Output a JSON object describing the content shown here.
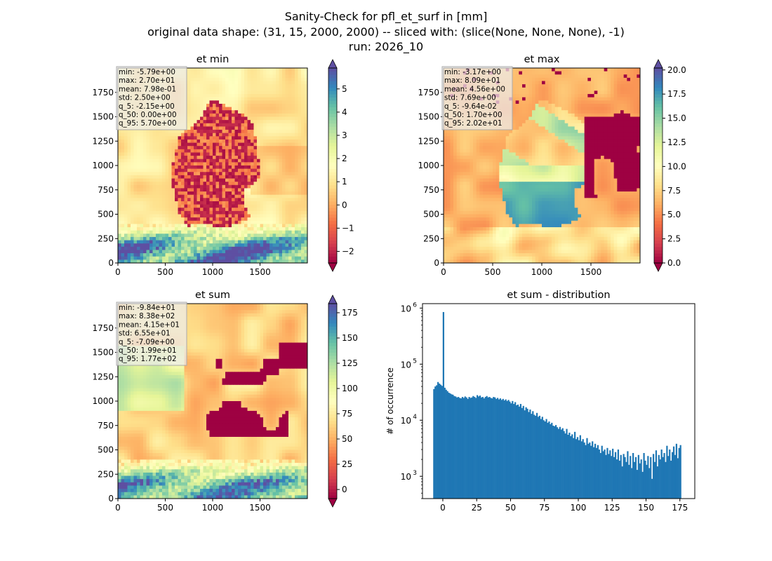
{
  "figure": {
    "title_lines": [
      "Sanity-Check for pfl_et_surf in [mm]",
      "original data shape: (31, 15, 2000, 2000) -- sliced with: (slice(None, None, None), -1)",
      "run: 2026_10"
    ]
  },
  "colormap": {
    "name": "Spectral",
    "stops": [
      "#9e0142",
      "#d53e4f",
      "#f46d43",
      "#fdae61",
      "#fee08b",
      "#ffffbf",
      "#e6f598",
      "#abdda4",
      "#66c2a5",
      "#3288bd",
      "#5e4fa2"
    ]
  },
  "chart_data": [
    {
      "type": "heatmap",
      "title": "et min",
      "xlim": [
        0,
        2000
      ],
      "ylim": [
        0,
        2000
      ],
      "xticks": [
        "0",
        "500",
        "1000",
        "1500"
      ],
      "yticks": [
        "0",
        "250",
        "500",
        "750",
        "1000",
        "1250",
        "1500",
        "1750"
      ],
      "color_range": [
        -2.5,
        5.9
      ],
      "colorbar_ticks": [
        "−2",
        "−1",
        "0",
        "1",
        "2",
        "3",
        "4",
        "5"
      ],
      "colorbar_tick_values": [
        -2,
        -1,
        0,
        1,
        2,
        3,
        4,
        5
      ],
      "colorbar_extend": "both",
      "stats": [
        "min: -5.79e+00",
        "max: 2.70e+01",
        "mean: 7.98e-01",
        "std: 2.50e+00",
        "q_5: -2.15e+00",
        "q_50: 0.00e+00",
        "q_95: 5.70e+00"
      ]
    },
    {
      "type": "heatmap",
      "title": "et max",
      "xlim": [
        0,
        2000
      ],
      "ylim": [
        0,
        2000
      ],
      "xticks": [
        "0",
        "500",
        "1000",
        "1500"
      ],
      "yticks": [
        "0",
        "250",
        "500",
        "750",
        "1000",
        "1250",
        "1500",
        "1750"
      ],
      "color_range": [
        0,
        20.2
      ],
      "colorbar_ticks": [
        "0.0",
        "2.5",
        "5.0",
        "7.5",
        "10.0",
        "12.5",
        "15.0",
        "17.5",
        "20.0"
      ],
      "colorbar_tick_values": [
        0,
        2.5,
        5,
        7.5,
        10,
        12.5,
        15,
        17.5,
        20
      ],
      "colorbar_extend": "both",
      "stats": [
        "min: -3.17e+00",
        "max: 8.09e+01",
        "mean: 4.56e+00",
        "std: 7.69e+00",
        "q_5: -9.64e-02",
        "q_50: 1.70e+00",
        "q_95: 2.02e+01"
      ]
    },
    {
      "type": "heatmap",
      "title": "et sum",
      "xlim": [
        0,
        2000
      ],
      "ylim": [
        0,
        2000
      ],
      "xticks": [
        "0",
        "500",
        "1000",
        "1500"
      ],
      "yticks": [
        "0",
        "250",
        "500",
        "750",
        "1000",
        "1250",
        "1500",
        "1750"
      ],
      "color_range": [
        -9,
        184
      ],
      "colorbar_ticks": [
        "0",
        "25",
        "50",
        "75",
        "100",
        "125",
        "150",
        "175"
      ],
      "colorbar_tick_values": [
        0,
        25,
        50,
        75,
        100,
        125,
        150,
        175
      ],
      "colorbar_extend": "both",
      "stats": [
        "min: -9.84e+01",
        "max: 8.38e+02",
        "mean: 4.15e+01",
        "std: 6.55e+01",
        "q_5: -7.09e+00",
        "q_50: 1.99e+01",
        "q_95: 1.77e+02"
      ]
    },
    {
      "type": "bar",
      "title": "et sum - distribution",
      "ylabel": "# of occurrence",
      "yscale": "log",
      "xlim": [
        -15,
        186
      ],
      "ylim": [
        400,
        1200000
      ],
      "xticks": [
        "0",
        "25",
        "50",
        "75",
        "100",
        "125",
        "150",
        "175"
      ],
      "xtick_values": [
        0,
        25,
        50,
        75,
        100,
        125,
        150,
        175
      ],
      "yticks": [
        "10",
        "10",
        "10"
      ],
      "ytick_exponents": [
        "3",
        "4",
        "5",
        "6"
      ],
      "ytick_values": [
        1000,
        10000,
        100000,
        1000000
      ],
      "bar_color": "#1f77b4",
      "bin_width": 1.0,
      "bin_start": -7.1,
      "values": [
        36000,
        40000,
        42000,
        48000,
        45000,
        43000,
        41000,
        850000,
        38000,
        35000,
        33000,
        31000,
        30000,
        29000,
        28500,
        27000,
        26500,
        25500,
        26000,
        25000,
        24500,
        26000,
        25000,
        26500,
        25500,
        24000,
        26000,
        25000,
        25500,
        27000,
        26000,
        25000,
        28000,
        26500,
        27500,
        25500,
        26000,
        24500,
        26000,
        27000,
        25500,
        26000,
        25000,
        24500,
        26000,
        25500,
        24000,
        25000,
        23500,
        24500,
        23000,
        24000,
        22500,
        23500,
        22000,
        23000,
        21500,
        20000,
        22000,
        19500,
        21000,
        18500,
        19000,
        17500,
        19500,
        16500,
        18000,
        15000,
        17000,
        16000,
        14000,
        15500,
        13000,
        14500,
        12500,
        12000,
        13500,
        11500,
        12000,
        10500,
        11500,
        10000,
        9500,
        10500,
        9000,
        9500,
        8500,
        9000,
        8000,
        7800,
        8200,
        7500,
        7000,
        7600,
        6800,
        7200,
        6400,
        5800,
        7000,
        5500,
        6000,
        5200,
        5600,
        4800,
        6200,
        4600,
        5000,
        4400,
        5400,
        4200,
        4600,
        4000,
        3600,
        4800,
        3800,
        4000,
        3500,
        4200,
        3300,
        3800,
        3200,
        3600,
        3000,
        2600,
        3500,
        2800,
        3000,
        2400,
        3200,
        2500,
        2900,
        2300,
        3100,
        2200,
        2700,
        2000,
        3000,
        1900,
        2400,
        1500,
        2500,
        2200,
        1800,
        2800,
        1600,
        2300,
        1400,
        2600,
        1800,
        2200,
        1300,
        2400,
        1700,
        2000,
        1200,
        2600,
        1900,
        1600,
        2300,
        1400,
        2200,
        900,
        2500,
        1800,
        2900,
        1500,
        2400,
        2000,
        3000,
        2200,
        2600,
        1800,
        3500,
        2300,
        3000,
        1900,
        2700,
        3400,
        2400,
        3800,
        2100,
        3200,
        3600
      ]
    }
  ]
}
